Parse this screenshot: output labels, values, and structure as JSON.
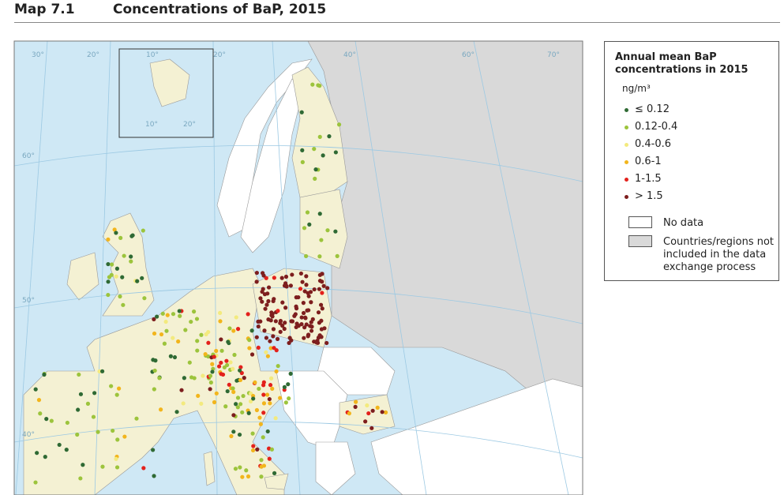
{
  "header": {
    "map_number": "Map 7.1",
    "title": "Concentrations of BaP, 2015"
  },
  "map": {
    "graticule_labels": [
      "30°",
      "20°",
      "10°",
      "20°",
      "40°",
      "60°",
      "70°",
      "60°",
      "50°",
      "40°",
      "10°",
      "20°"
    ],
    "colors": {
      "sea": "#cfe8f5",
      "included": "#f4f1d3",
      "no_data": "#ffffff",
      "excluded": "#d9d9d9"
    }
  },
  "legend": {
    "title": "Annual mean BaP concentrations in 2015",
    "unit": "ng/m³",
    "classes": [
      {
        "label": "≤ 0.12",
        "color": "#2f6a34"
      },
      {
        "label": "0.12-0.4",
        "color": "#9cc43c"
      },
      {
        "label": "0.4-0.6",
        "color": "#f3ea7e"
      },
      {
        "label": "0.6-1",
        "color": "#f2b51c"
      },
      {
        "label": "1-1.5",
        "color": "#e3211c"
      },
      {
        "label": "> 1.5",
        "color": "#7d1e1e"
      }
    ],
    "no_data": "No data",
    "not_included": "Countries/regions not included in the data exchange process"
  }
}
